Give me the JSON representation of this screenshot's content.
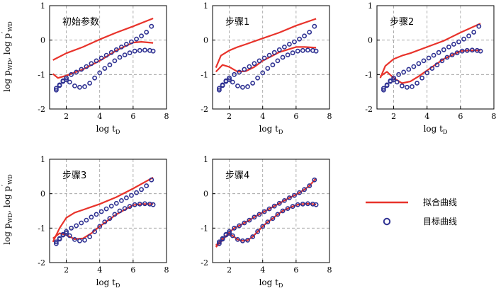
{
  "figure": {
    "legend": {
      "fit_label": "拟合曲线",
      "target_label": "目标曲线",
      "fit_color": "#e8332b",
      "target_color": "#2e3192"
    },
    "ylabel_main": "log p",
    "ylabel_sub1": "WD",
    "ylabel_sep": ",  log p",
    "ylabel_prime": "′",
    "ylabel_sub2": "WD",
    "xlabel_main": "log t",
    "xlabel_sub": "D"
  },
  "chart_data": [
    {
      "type": "line",
      "title": "初始参数",
      "xlim": [
        1,
        8
      ],
      "ylim": [
        -2,
        1
      ],
      "xticks": [
        2,
        4,
        6,
        8
      ],
      "yticks": [
        -2,
        -1,
        0,
        1
      ],
      "grid": true,
      "series": [
        {
          "name": "拟合曲线",
          "role": "fit-upper",
          "x": [
            1.2,
            2,
            3,
            4,
            5,
            6,
            7.2
          ],
          "y": [
            -0.58,
            -0.38,
            -0.2,
            0.02,
            0.22,
            0.4,
            0.63
          ]
        },
        {
          "name": "拟合曲线",
          "role": "fit-lower",
          "x": [
            1.2,
            1.5,
            2,
            3,
            4,
            5,
            6,
            6.5,
            7.2
          ],
          "y": [
            -0.98,
            -1.1,
            -1.03,
            -0.85,
            -0.6,
            -0.3,
            -0.07,
            -0.05,
            -0.08
          ]
        },
        {
          "name": "目标曲线",
          "role": "target-pressure",
          "x": [
            1.4,
            1.6,
            1.8,
            2,
            2.3,
            2.6,
            2.9,
            3.2,
            3.5,
            3.8,
            4.1,
            4.4,
            4.7,
            5,
            5.3,
            5.6,
            5.9,
            6.2,
            6.5,
            6.8,
            7.1
          ],
          "y": [
            -1.4,
            -1.3,
            -1.2,
            -1.1,
            -1.0,
            -0.93,
            -0.85,
            -0.77,
            -0.68,
            -0.6,
            -0.52,
            -0.44,
            -0.36,
            -0.28,
            -0.2,
            -0.12,
            -0.05,
            0.03,
            0.12,
            0.23,
            0.4
          ]
        },
        {
          "name": "目标曲线",
          "role": "target-derivative",
          "x": [
            1.4,
            1.6,
            1.8,
            2,
            2.2,
            2.5,
            2.8,
            3.1,
            3.4,
            3.7,
            4,
            4.3,
            4.6,
            4.9,
            5.2,
            5.5,
            5.8,
            6.1,
            6.4,
            6.7,
            7,
            7.2
          ],
          "y": [
            -1.45,
            -1.32,
            -1.18,
            -1.15,
            -1.22,
            -1.33,
            -1.37,
            -1.35,
            -1.25,
            -1.1,
            -0.95,
            -0.82,
            -0.72,
            -0.6,
            -0.5,
            -0.43,
            -0.37,
            -0.32,
            -0.3,
            -0.29,
            -0.3,
            -0.32
          ]
        }
      ]
    },
    {
      "type": "line",
      "title": "步骤1",
      "xlim": [
        1,
        8
      ],
      "ylim": [
        -2,
        1
      ],
      "xticks": [
        2,
        4,
        6,
        8
      ],
      "yticks": [
        -2,
        -1,
        0,
        1
      ],
      "grid": true,
      "series": [
        {
          "name": "拟合曲线",
          "role": "fit-upper",
          "x": [
            1.2,
            1.5,
            2,
            2.5,
            3,
            4,
            5,
            6,
            7.2
          ],
          "y": [
            -0.8,
            -0.45,
            -0.3,
            -0.2,
            -0.12,
            0.05,
            0.22,
            0.42,
            0.62
          ]
        },
        {
          "name": "拟合曲线",
          "role": "fit-lower",
          "x": [
            1.2,
            1.6,
            2,
            2.5,
            3,
            3.5,
            4,
            5,
            6,
            6.5,
            7.2
          ],
          "y": [
            -0.92,
            -0.72,
            -0.78,
            -0.92,
            -0.9,
            -0.78,
            -0.6,
            -0.35,
            -0.2,
            -0.2,
            -0.22
          ]
        },
        {
          "name": "目标曲线",
          "role": "target-pressure",
          "x": [
            1.4,
            1.6,
            1.8,
            2,
            2.3,
            2.6,
            2.9,
            3.2,
            3.5,
            3.8,
            4.1,
            4.4,
            4.7,
            5,
            5.3,
            5.6,
            5.9,
            6.2,
            6.5,
            6.8,
            7.1
          ],
          "y": [
            -1.4,
            -1.3,
            -1.2,
            -1.1,
            -1.0,
            -0.93,
            -0.85,
            -0.77,
            -0.68,
            -0.6,
            -0.52,
            -0.44,
            -0.36,
            -0.28,
            -0.2,
            -0.12,
            -0.05,
            0.03,
            0.12,
            0.23,
            0.4
          ]
        },
        {
          "name": "目标曲线",
          "role": "target-derivative",
          "x": [
            1.4,
            1.6,
            1.8,
            2,
            2.2,
            2.5,
            2.8,
            3.1,
            3.4,
            3.7,
            4,
            4.3,
            4.6,
            4.9,
            5.2,
            5.5,
            5.8,
            6.1,
            6.4,
            6.7,
            7,
            7.2
          ],
          "y": [
            -1.45,
            -1.32,
            -1.18,
            -1.15,
            -1.22,
            -1.33,
            -1.37,
            -1.35,
            -1.25,
            -1.1,
            -0.95,
            -0.82,
            -0.72,
            -0.6,
            -0.5,
            -0.43,
            -0.37,
            -0.32,
            -0.3,
            -0.29,
            -0.3,
            -0.32
          ]
        }
      ]
    },
    {
      "type": "line",
      "title": "步骤2",
      "xlim": [
        1,
        8
      ],
      "ylim": [
        -2,
        1
      ],
      "xticks": [
        2,
        4,
        6,
        8
      ],
      "yticks": [
        -2,
        -1,
        0,
        1
      ],
      "grid": true,
      "series": [
        {
          "name": "拟合曲线",
          "role": "fit-upper",
          "x": [
            1.2,
            1.5,
            2,
            2.5,
            3,
            4,
            5,
            6,
            7.2
          ],
          "y": [
            -1.1,
            -0.75,
            -0.55,
            -0.45,
            -0.38,
            -0.2,
            -0.02,
            0.22,
            0.48
          ]
        },
        {
          "name": "拟合曲线",
          "role": "fit-lower",
          "x": [
            1.2,
            1.6,
            2,
            2.5,
            3,
            3.5,
            4,
            5,
            6,
            6.5,
            7.2
          ],
          "y": [
            -1.05,
            -0.92,
            -1.1,
            -1.25,
            -1.2,
            -1.05,
            -0.88,
            -0.55,
            -0.32,
            -0.3,
            -0.3
          ]
        },
        {
          "name": "目标曲线",
          "role": "target-pressure",
          "x": [
            1.4,
            1.6,
            1.8,
            2,
            2.3,
            2.6,
            2.9,
            3.2,
            3.5,
            3.8,
            4.1,
            4.4,
            4.7,
            5,
            5.3,
            5.6,
            5.9,
            6.2,
            6.5,
            6.8,
            7.1
          ],
          "y": [
            -1.4,
            -1.3,
            -1.2,
            -1.1,
            -1.0,
            -0.93,
            -0.85,
            -0.77,
            -0.68,
            -0.6,
            -0.52,
            -0.44,
            -0.36,
            -0.28,
            -0.2,
            -0.12,
            -0.05,
            0.03,
            0.12,
            0.23,
            0.4
          ]
        },
        {
          "name": "目标曲线",
          "role": "target-derivative",
          "x": [
            1.4,
            1.6,
            1.8,
            2,
            2.2,
            2.5,
            2.8,
            3.1,
            3.4,
            3.7,
            4,
            4.3,
            4.6,
            4.9,
            5.2,
            5.5,
            5.8,
            6.1,
            6.4,
            6.7,
            7,
            7.2
          ],
          "y": [
            -1.45,
            -1.32,
            -1.18,
            -1.15,
            -1.22,
            -1.33,
            -1.37,
            -1.35,
            -1.25,
            -1.1,
            -0.95,
            -0.82,
            -0.72,
            -0.6,
            -0.5,
            -0.43,
            -0.37,
            -0.32,
            -0.3,
            -0.29,
            -0.3,
            -0.32
          ]
        }
      ]
    },
    {
      "type": "line",
      "title": "步骤3",
      "xlim": [
        1,
        8
      ],
      "ylim": [
        -2,
        1
      ],
      "xticks": [
        2,
        4,
        6,
        8
      ],
      "yticks": [
        -2,
        -1,
        0,
        1
      ],
      "grid": true,
      "series": [
        {
          "name": "拟合曲线",
          "role": "fit-upper",
          "x": [
            1.2,
            1.6,
            2,
            2.5,
            3,
            4,
            5,
            6,
            7.2
          ],
          "y": [
            -1.4,
            -1.0,
            -0.7,
            -0.55,
            -0.47,
            -0.3,
            -0.1,
            0.15,
            0.47
          ]
        },
        {
          "name": "拟合曲线",
          "role": "fit-lower",
          "x": [
            1.2,
            1.6,
            2,
            2.5,
            3,
            3.5,
            4,
            5,
            6,
            6.5,
            7.2
          ],
          "y": [
            -1.3,
            -1.15,
            -1.2,
            -1.32,
            -1.3,
            -1.15,
            -0.95,
            -0.6,
            -0.33,
            -0.3,
            -0.3
          ]
        },
        {
          "name": "目标曲线",
          "role": "target-pressure",
          "x": [
            1.4,
            1.6,
            1.8,
            2,
            2.3,
            2.6,
            2.9,
            3.2,
            3.5,
            3.8,
            4.1,
            4.4,
            4.7,
            5,
            5.3,
            5.6,
            5.9,
            6.2,
            6.5,
            6.8,
            7.1
          ],
          "y": [
            -1.4,
            -1.3,
            -1.2,
            -1.1,
            -1.0,
            -0.93,
            -0.85,
            -0.77,
            -0.68,
            -0.6,
            -0.52,
            -0.44,
            -0.36,
            -0.28,
            -0.2,
            -0.12,
            -0.05,
            0.03,
            0.12,
            0.23,
            0.4
          ]
        },
        {
          "name": "目标曲线",
          "role": "target-derivative",
          "x": [
            1.4,
            1.6,
            1.8,
            2,
            2.2,
            2.5,
            2.8,
            3.1,
            3.4,
            3.7,
            4,
            4.3,
            4.6,
            4.9,
            5.2,
            5.5,
            5.8,
            6.1,
            6.4,
            6.7,
            7,
            7.2
          ],
          "y": [
            -1.45,
            -1.32,
            -1.18,
            -1.15,
            -1.22,
            -1.33,
            -1.37,
            -1.35,
            -1.25,
            -1.1,
            -0.95,
            -0.82,
            -0.72,
            -0.6,
            -0.5,
            -0.43,
            -0.37,
            -0.32,
            -0.3,
            -0.29,
            -0.3,
            -0.32
          ]
        }
      ]
    },
    {
      "type": "line",
      "title": "步骤4",
      "xlim": [
        1,
        8
      ],
      "ylim": [
        -2,
        1
      ],
      "xticks": [
        2,
        4,
        6,
        8
      ],
      "yticks": [
        -2,
        -1,
        0,
        1
      ],
      "grid": true,
      "series": [
        {
          "name": "拟合曲线",
          "role": "fit-upper",
          "x": [
            1.2,
            1.6,
            2,
            2.3,
            2.6,
            2.9,
            3.2,
            3.5,
            3.8,
            4.1,
            4.4,
            4.7,
            5,
            5.3,
            5.6,
            5.9,
            6.2,
            6.5,
            6.8,
            7.2
          ],
          "y": [
            -1.55,
            -1.35,
            -1.12,
            -1.0,
            -0.93,
            -0.85,
            -0.77,
            -0.68,
            -0.6,
            -0.52,
            -0.44,
            -0.36,
            -0.28,
            -0.2,
            -0.12,
            -0.05,
            0.03,
            0.12,
            0.23,
            0.45
          ]
        },
        {
          "name": "拟合曲线",
          "role": "fit-lower",
          "x": [
            1.2,
            1.6,
            2,
            2.2,
            2.5,
            2.8,
            3.1,
            3.4,
            3.7,
            4,
            4.3,
            4.6,
            4.9,
            5.2,
            5.5,
            5.8,
            6.1,
            6.4,
            6.7,
            7,
            7.2
          ],
          "y": [
            -1.5,
            -1.3,
            -1.18,
            -1.22,
            -1.33,
            -1.37,
            -1.35,
            -1.25,
            -1.1,
            -0.95,
            -0.82,
            -0.72,
            -0.6,
            -0.5,
            -0.43,
            -0.37,
            -0.32,
            -0.3,
            -0.29,
            -0.3,
            -0.32
          ]
        },
        {
          "name": "目标曲线",
          "role": "target-pressure",
          "x": [
            1.4,
            1.6,
            1.8,
            2,
            2.3,
            2.6,
            2.9,
            3.2,
            3.5,
            3.8,
            4.1,
            4.4,
            4.7,
            5,
            5.3,
            5.6,
            5.9,
            6.2,
            6.5,
            6.8,
            7.1
          ],
          "y": [
            -1.4,
            -1.3,
            -1.2,
            -1.1,
            -1.0,
            -0.93,
            -0.85,
            -0.77,
            -0.68,
            -0.6,
            -0.52,
            -0.44,
            -0.36,
            -0.28,
            -0.2,
            -0.12,
            -0.05,
            0.03,
            0.12,
            0.23,
            0.4
          ]
        },
        {
          "name": "目标曲线",
          "role": "target-derivative",
          "x": [
            1.4,
            1.6,
            1.8,
            2,
            2.2,
            2.5,
            2.8,
            3.1,
            3.4,
            3.7,
            4,
            4.3,
            4.6,
            4.9,
            5.2,
            5.5,
            5.8,
            6.1,
            6.4,
            6.7,
            7,
            7.2
          ],
          "y": [
            -1.45,
            -1.32,
            -1.18,
            -1.15,
            -1.22,
            -1.33,
            -1.37,
            -1.35,
            -1.25,
            -1.1,
            -0.95,
            -0.82,
            -0.72,
            -0.6,
            -0.5,
            -0.43,
            -0.37,
            -0.32,
            -0.3,
            -0.29,
            -0.3,
            -0.32
          ]
        }
      ]
    }
  ]
}
